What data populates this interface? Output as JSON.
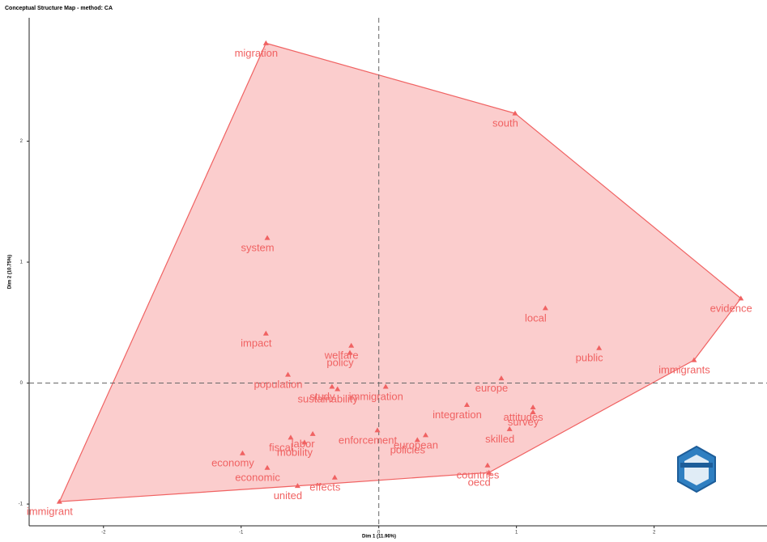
{
  "chart_data": {
    "type": "scatter",
    "title": "Conceptual Structure Map - method: CA",
    "x_label": "Dim 1 (11.96%)",
    "y_label": "Dim 2 (10.75%)",
    "color": "#f06262",
    "hull_color": "#f9b8b8",
    "xlim": [
      -2.54,
      2.82
    ],
    "ylim": [
      -1.18,
      3.02
    ],
    "xticks": [
      -2,
      -1,
      0,
      1,
      2
    ],
    "yticks": [
      -1,
      0,
      1,
      2
    ],
    "series": [
      {
        "name": null,
        "color": "#f06262",
        "labels": [
          "migration",
          "south",
          "evidence",
          "immigrants",
          "oecd",
          "immigrant",
          "system",
          "local",
          "public",
          "impact",
          "welfare",
          "policy",
          "population",
          "study",
          "sustainability",
          "europe",
          "immigration",
          "attitudes",
          "survey",
          "integration",
          "skilled",
          "european",
          "policies",
          "enforcement",
          "labor",
          "fiscal",
          "mobility",
          "economy",
          "economic",
          "effects",
          "countries",
          "united"
        ],
        "x": [
          -0.82,
          0.99,
          2.63,
          2.29,
          0.8,
          -2.32,
          -0.81,
          1.21,
          1.6,
          -0.82,
          -0.2,
          -0.21,
          -0.66,
          -0.34,
          -0.3,
          0.89,
          0.05,
          1.12,
          1.12,
          0.64,
          0.95,
          0.34,
          0.28,
          -0.01,
          -0.48,
          -0.64,
          -0.54,
          -0.99,
          -0.81,
          -0.32,
          0.79,
          -0.59
        ],
        "values": [
          2.81,
          2.23,
          0.7,
          0.19,
          -0.74,
          -0.98,
          1.2,
          0.62,
          0.29,
          0.41,
          0.31,
          0.25,
          0.07,
          -0.03,
          -0.05,
          0.04,
          -0.03,
          -0.2,
          -0.24,
          -0.18,
          -0.38,
          -0.43,
          -0.47,
          -0.39,
          -0.42,
          -0.45,
          -0.49,
          -0.58,
          -0.7,
          -0.78,
          -0.68,
          -0.85
        ]
      }
    ]
  }
}
